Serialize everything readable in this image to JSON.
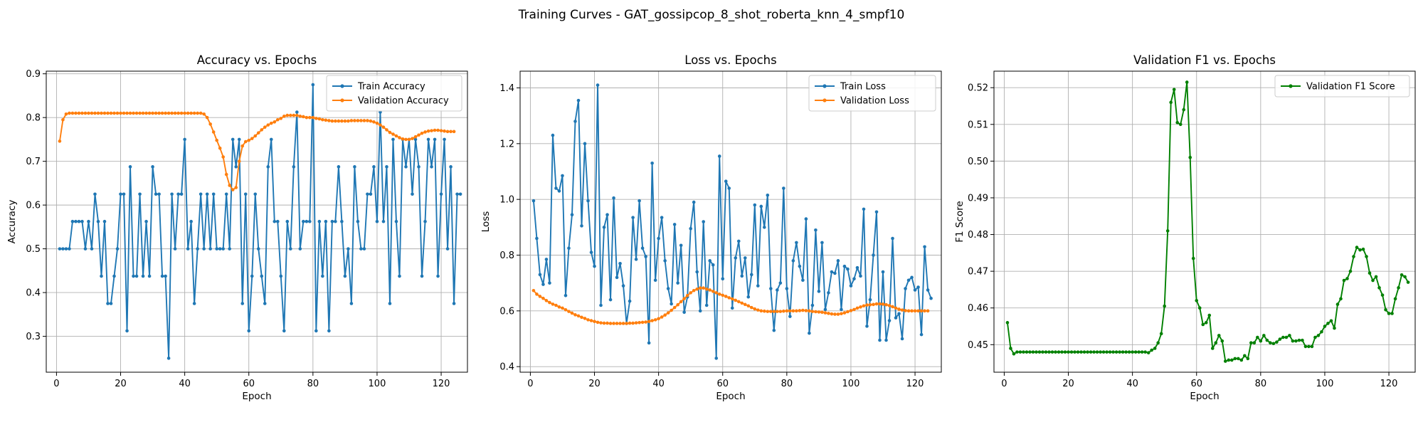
{
  "figure": {
    "suptitle": "Training Curves - GAT_gossipcop_8_shot_roberta_knn_4_smpf10"
  },
  "chart_data": [
    {
      "type": "line",
      "title": "Accuracy vs. Epochs",
      "xlabel": "Epoch",
      "ylabel": "Accuracy",
      "xlim": [
        -3.2,
        128.2
      ],
      "ylim": [
        0.218,
        0.906
      ],
      "xticks": [
        0,
        20,
        40,
        60,
        80,
        100,
        120
      ],
      "yticks": [
        0.3,
        0.4,
        0.5,
        0.6,
        0.7,
        0.8,
        0.9
      ],
      "ytick_decimals": 1,
      "grid": true,
      "legend": "upper right",
      "series": [
        {
          "name": "Train Accuracy",
          "color": "#1f77b4",
          "values": [
            0.5,
            0.5,
            0.5,
            0.5,
            0.5625,
            0.5625,
            0.5625,
            0.5625,
            0.5,
            0.5625,
            0.5,
            0.625,
            0.5625,
            0.4375,
            0.5625,
            0.375,
            0.375,
            0.4375,
            0.5,
            0.625,
            0.625,
            0.3125,
            0.6875,
            0.4375,
            0.4375,
            0.625,
            0.4375,
            0.5625,
            0.4375,
            0.6875,
            0.625,
            0.625,
            0.4375,
            0.4375,
            0.25,
            0.625,
            0.5,
            0.625,
            0.625,
            0.75,
            0.5,
            0.5625,
            0.375,
            0.5,
            0.625,
            0.5,
            0.625,
            0.5,
            0.625,
            0.5,
            0.5,
            0.5,
            0.625,
            0.5,
            0.75,
            0.6875,
            0.75,
            0.375,
            0.625,
            0.3125,
            0.4375,
            0.625,
            0.5,
            0.4375,
            0.375,
            0.6875,
            0.75,
            0.5625,
            0.5625,
            0.4375,
            0.3125,
            0.5625,
            0.5,
            0.6875,
            0.8125,
            0.5,
            0.5625,
            0.5625,
            0.5625,
            0.875,
            0.3125,
            0.5625,
            0.4375,
            0.5625,
            0.3125,
            0.5625,
            0.5625,
            0.6875,
            0.5625,
            0.4375,
            0.5,
            0.375,
            0.6875,
            0.5625,
            0.5,
            0.5,
            0.625,
            0.625,
            0.6875,
            0.5625,
            0.8125,
            0.5625,
            0.6875,
            0.375,
            0.75,
            0.5625,
            0.4375,
            0.75,
            0.6875,
            0.75,
            0.625,
            0.75,
            0.6875,
            0.4375,
            0.5625,
            0.75,
            0.6875,
            0.75,
            0.4375,
            0.625,
            0.75,
            0.5,
            0.6875,
            0.375,
            0.625,
            0.625
          ]
        },
        {
          "name": "Validation Accuracy",
          "color": "#ff7f0e",
          "values": [
            0.746,
            0.795,
            0.808,
            0.81,
            0.81,
            0.81,
            0.81,
            0.81,
            0.81,
            0.81,
            0.81,
            0.81,
            0.81,
            0.81,
            0.81,
            0.81,
            0.81,
            0.81,
            0.81,
            0.81,
            0.81,
            0.81,
            0.81,
            0.81,
            0.81,
            0.81,
            0.81,
            0.81,
            0.81,
            0.81,
            0.81,
            0.81,
            0.81,
            0.81,
            0.81,
            0.81,
            0.81,
            0.81,
            0.81,
            0.81,
            0.81,
            0.81,
            0.81,
            0.81,
            0.81,
            0.808,
            0.8,
            0.785,
            0.767,
            0.748,
            0.73,
            0.71,
            0.67,
            0.645,
            0.635,
            0.64,
            0.7,
            0.735,
            0.745,
            0.748,
            0.752,
            0.758,
            0.765,
            0.772,
            0.778,
            0.783,
            0.787,
            0.79,
            0.795,
            0.798,
            0.803,
            0.805,
            0.805,
            0.805,
            0.805,
            0.803,
            0.802,
            0.8,
            0.8,
            0.8,
            0.798,
            0.797,
            0.795,
            0.794,
            0.793,
            0.792,
            0.792,
            0.792,
            0.792,
            0.792,
            0.792,
            0.793,
            0.793,
            0.793,
            0.793,
            0.793,
            0.793,
            0.792,
            0.79,
            0.787,
            0.783,
            0.778,
            0.772,
            0.766,
            0.762,
            0.758,
            0.754,
            0.751,
            0.75,
            0.75,
            0.752,
            0.756,
            0.76,
            0.764,
            0.767,
            0.769,
            0.77,
            0.771,
            0.771,
            0.77,
            0.769,
            0.768,
            0.768,
            0.768
          ]
        }
      ]
    },
    {
      "type": "line",
      "title": "Loss vs. Epochs",
      "xlabel": "Epoch",
      "ylabel": "Loss",
      "xlim": [
        -3.2,
        128.2
      ],
      "ylim": [
        0.38,
        1.46
      ],
      "xticks": [
        0,
        20,
        40,
        60,
        80,
        100,
        120
      ],
      "yticks": [
        0.4,
        0.6,
        0.8,
        1.0,
        1.2,
        1.4
      ],
      "ytick_decimals": 1,
      "grid": true,
      "legend": "upper right",
      "series": [
        {
          "name": "Train Loss",
          "color": "#1f77b4",
          "values": [
            0.995,
            0.86,
            0.73,
            0.695,
            0.785,
            0.7,
            1.23,
            1.04,
            1.03,
            1.085,
            0.655,
            0.825,
            0.945,
            1.28,
            1.355,
            0.905,
            1.2,
            0.995,
            0.81,
            0.76,
            1.41,
            0.62,
            0.9,
            0.945,
            0.64,
            1.005,
            0.72,
            0.77,
            0.69,
            0.555,
            0.635,
            0.935,
            0.785,
            0.995,
            0.825,
            0.795,
            0.485,
            1.13,
            0.71,
            0.86,
            0.935,
            0.78,
            0.68,
            0.625,
            0.91,
            0.7,
            0.835,
            0.595,
            0.65,
            0.895,
            0.99,
            0.74,
            0.6,
            0.92,
            0.62,
            0.78,
            0.765,
            0.43,
            1.155,
            0.715,
            1.065,
            1.04,
            0.61,
            0.79,
            0.85,
            0.725,
            0.79,
            0.65,
            0.73,
            0.98,
            0.69,
            0.975,
            0.9,
            1.015,
            0.68,
            0.53,
            0.675,
            0.7,
            1.04,
            0.68,
            0.58,
            0.78,
            0.845,
            0.76,
            0.71,
            0.93,
            0.52,
            0.62,
            0.89,
            0.67,
            0.845,
            0.605,
            0.665,
            0.74,
            0.735,
            0.78,
            0.605,
            0.76,
            0.75,
            0.69,
            0.715,
            0.755,
            0.725,
            0.965,
            0.545,
            0.64,
            0.8,
            0.955,
            0.495,
            0.74,
            0.495,
            0.565,
            0.86,
            0.575,
            0.59,
            0.5,
            0.68,
            0.71,
            0.72,
            0.675,
            0.685,
            0.515,
            0.83,
            0.675,
            0.645
          ]
        },
        {
          "name": "Validation Loss",
          "color": "#ff7f0e",
          "values": [
            0.673,
            0.66,
            0.652,
            0.645,
            0.637,
            0.63,
            0.624,
            0.62,
            0.614,
            0.61,
            0.604,
            0.598,
            0.592,
            0.586,
            0.582,
            0.577,
            0.573,
            0.568,
            0.565,
            0.562,
            0.559,
            0.557,
            0.556,
            0.556,
            0.555,
            0.555,
            0.555,
            0.555,
            0.555,
            0.555,
            0.556,
            0.556,
            0.557,
            0.558,
            0.559,
            0.56,
            0.562,
            0.565,
            0.568,
            0.572,
            0.578,
            0.585,
            0.593,
            0.602,
            0.612,
            0.622,
            0.633,
            0.644,
            0.655,
            0.665,
            0.673,
            0.678,
            0.682,
            0.682,
            0.678,
            0.675,
            0.67,
            0.665,
            0.66,
            0.656,
            0.652,
            0.647,
            0.643,
            0.638,
            0.633,
            0.628,
            0.623,
            0.618,
            0.612,
            0.607,
            0.603,
            0.6,
            0.599,
            0.598,
            0.598,
            0.598,
            0.598,
            0.598,
            0.599,
            0.6,
            0.6,
            0.6,
            0.6,
            0.601,
            0.602,
            0.601,
            0.6,
            0.598,
            0.597,
            0.596,
            0.595,
            0.593,
            0.591,
            0.589,
            0.588,
            0.588,
            0.59,
            0.593,
            0.597,
            0.601,
            0.605,
            0.61,
            0.614,
            0.618,
            0.621,
            0.622,
            0.623,
            0.625,
            0.625,
            0.624,
            0.622,
            0.619,
            0.615,
            0.61,
            0.606,
            0.603,
            0.601,
            0.6,
            0.6,
            0.6,
            0.6,
            0.6,
            0.6,
            0.6
          ]
        }
      ]
    },
    {
      "type": "line",
      "title": "Validation F1 vs. Epochs",
      "xlabel": "Epoch",
      "ylabel": "F1 Score",
      "xlim": [
        -3.2,
        128.2
      ],
      "ylim": [
        0.4425,
        0.5245
      ],
      "xticks": [
        0,
        20,
        40,
        60,
        80,
        100,
        120
      ],
      "yticks": [
        0.45,
        0.46,
        0.47,
        0.48,
        0.49,
        0.5,
        0.51,
        0.52
      ],
      "ytick_decimals": 2,
      "grid": true,
      "legend": "upper right",
      "series": [
        {
          "name": "Validation F1 Score",
          "color": "#008000",
          "values": [
            0.456,
            0.449,
            0.4475,
            0.448,
            0.448,
            0.448,
            0.448,
            0.448,
            0.448,
            0.448,
            0.448,
            0.448,
            0.448,
            0.448,
            0.448,
            0.448,
            0.448,
            0.448,
            0.448,
            0.448,
            0.448,
            0.448,
            0.448,
            0.448,
            0.448,
            0.448,
            0.448,
            0.448,
            0.448,
            0.448,
            0.448,
            0.448,
            0.448,
            0.448,
            0.448,
            0.448,
            0.448,
            0.448,
            0.448,
            0.448,
            0.448,
            0.448,
            0.448,
            0.448,
            0.4478,
            0.4485,
            0.449,
            0.4505,
            0.453,
            0.4605,
            0.481,
            0.516,
            0.5195,
            0.5105,
            0.51,
            0.514,
            0.5215,
            0.501,
            0.4735,
            0.462,
            0.46,
            0.4555,
            0.456,
            0.458,
            0.449,
            0.4505,
            0.4525,
            0.451,
            0.4455,
            0.4458,
            0.4458,
            0.4462,
            0.4462,
            0.4458,
            0.447,
            0.4462,
            0.4505,
            0.4505,
            0.452,
            0.451,
            0.4525,
            0.4512,
            0.4505,
            0.4503,
            0.4507,
            0.4515,
            0.452,
            0.452,
            0.4525,
            0.451,
            0.451,
            0.4512,
            0.4512,
            0.4495,
            0.4495,
            0.4495,
            0.452,
            0.4525,
            0.4535,
            0.455,
            0.4558,
            0.4565,
            0.4545,
            0.461,
            0.4625,
            0.4675,
            0.468,
            0.47,
            0.474,
            0.4765,
            0.4758,
            0.476,
            0.474,
            0.4695,
            0.4675,
            0.4685,
            0.4655,
            0.4635,
            0.4595,
            0.4585,
            0.4585,
            0.4625,
            0.4655,
            0.469,
            0.4685,
            0.467
          ]
        }
      ]
    }
  ]
}
